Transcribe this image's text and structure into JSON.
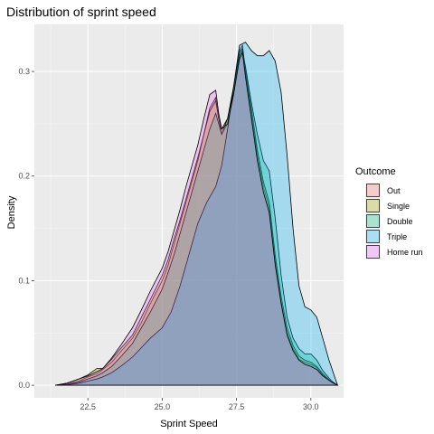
{
  "chart_data": {
    "type": "area",
    "title": "Distribution of sprint speed",
    "xlabel": "Sprint Speed",
    "ylabel": "Density",
    "xlim": [
      20.7,
      31.1
    ],
    "ylim": [
      -0.012,
      0.345
    ],
    "x_ticks": [
      22.5,
      25.0,
      27.5,
      30.0
    ],
    "x_tick_labels": [
      "22.5",
      "25.0",
      "27.5",
      "30.0"
    ],
    "y_ticks": [
      0.0,
      0.1,
      0.2,
      0.3
    ],
    "y_tick_labels": [
      "0.0",
      "0.1",
      "0.2",
      "0.3"
    ],
    "grid": true,
    "legend": {
      "title": "Outcome",
      "position": "right"
    },
    "series": [
      {
        "name": "Out",
        "color": "#F8766D",
        "x": [
          21.4,
          21.8,
          22.2,
          22.5,
          22.8,
          23.0,
          23.3,
          23.6,
          24.0,
          24.3,
          24.6,
          25.0,
          25.2,
          25.4,
          25.6,
          25.8,
          26.0,
          26.2,
          26.4,
          26.6,
          26.8,
          26.9,
          27.0,
          27.2,
          27.4,
          27.6,
          27.7,
          27.8,
          28.0,
          28.2,
          28.4,
          28.6,
          28.8,
          29.0,
          29.2,
          29.4,
          29.6,
          29.8,
          30.0,
          30.2,
          30.4,
          30.7,
          30.9
        ],
        "y": [
          0,
          0.001,
          0.004,
          0.008,
          0.011,
          0.015,
          0.022,
          0.032,
          0.045,
          0.06,
          0.078,
          0.1,
          0.115,
          0.135,
          0.155,
          0.175,
          0.195,
          0.215,
          0.24,
          0.265,
          0.275,
          0.255,
          0.24,
          0.25,
          0.28,
          0.32,
          0.325,
          0.3,
          0.26,
          0.22,
          0.19,
          0.17,
          0.12,
          0.08,
          0.05,
          0.035,
          0.025,
          0.022,
          0.02,
          0.017,
          0.01,
          0.003,
          0
        ]
      },
      {
        "name": "Single",
        "color": "#A3A500",
        "x": [
          21.4,
          21.8,
          22.2,
          22.5,
          22.8,
          23.0,
          23.3,
          23.6,
          24.0,
          24.3,
          24.6,
          25.0,
          25.2,
          25.4,
          25.6,
          25.8,
          26.0,
          26.2,
          26.4,
          26.6,
          26.8,
          26.9,
          27.0,
          27.2,
          27.4,
          27.6,
          27.7,
          27.8,
          28.0,
          28.2,
          28.4,
          28.6,
          28.8,
          29.0,
          29.2,
          29.4,
          29.6,
          29.8,
          30.0,
          30.2,
          30.4,
          30.7,
          30.9
        ],
        "y": [
          0,
          0.002,
          0.006,
          0.01,
          0.016,
          0.016,
          0.025,
          0.035,
          0.048,
          0.065,
          0.082,
          0.105,
          0.12,
          0.14,
          0.158,
          0.178,
          0.198,
          0.218,
          0.24,
          0.262,
          0.272,
          0.255,
          0.245,
          0.255,
          0.285,
          0.318,
          0.322,
          0.3,
          0.265,
          0.225,
          0.195,
          0.175,
          0.125,
          0.085,
          0.055,
          0.038,
          0.028,
          0.024,
          0.022,
          0.018,
          0.011,
          0.003,
          0
        ]
      },
      {
        "name": "Double",
        "color": "#00BF7D",
        "x": [
          21.4,
          21.8,
          22.2,
          22.5,
          22.8,
          23.0,
          23.3,
          23.6,
          24.0,
          24.3,
          24.6,
          25.0,
          25.2,
          25.4,
          25.6,
          25.8,
          26.0,
          26.2,
          26.4,
          26.6,
          26.8,
          26.9,
          27.0,
          27.2,
          27.4,
          27.6,
          27.7,
          27.8,
          28.0,
          28.2,
          28.4,
          28.6,
          28.8,
          29.0,
          29.2,
          29.4,
          29.6,
          29.8,
          30.0,
          30.2,
          30.4,
          30.7,
          30.9
        ],
        "y": [
          0,
          0.001,
          0.003,
          0.006,
          0.009,
          0.012,
          0.018,
          0.027,
          0.04,
          0.055,
          0.07,
          0.092,
          0.108,
          0.125,
          0.145,
          0.165,
          0.185,
          0.205,
          0.225,
          0.245,
          0.26,
          0.25,
          0.24,
          0.255,
          0.285,
          0.315,
          0.32,
          0.305,
          0.27,
          0.24,
          0.215,
          0.205,
          0.16,
          0.105,
          0.065,
          0.045,
          0.035,
          0.03,
          0.03,
          0.024,
          0.014,
          0.004,
          0
        ]
      },
      {
        "name": "Triple",
        "color": "#00B0F6",
        "x": [
          21.4,
          21.8,
          22.2,
          22.5,
          22.8,
          23.0,
          23.3,
          23.6,
          24.0,
          24.3,
          24.6,
          25.0,
          25.3,
          25.6,
          25.9,
          26.2,
          26.5,
          26.8,
          27.0,
          27.2,
          27.4,
          27.6,
          27.8,
          28.0,
          28.2,
          28.4,
          28.6,
          28.8,
          29.0,
          29.2,
          29.4,
          29.6,
          29.8,
          30.0,
          30.2,
          30.4,
          30.6,
          30.8,
          30.9
        ],
        "y": [
          0,
          0.0005,
          0.002,
          0.004,
          0.006,
          0.008,
          0.012,
          0.018,
          0.027,
          0.036,
          0.045,
          0.055,
          0.07,
          0.095,
          0.125,
          0.155,
          0.175,
          0.19,
          0.21,
          0.245,
          0.285,
          0.325,
          0.328,
          0.32,
          0.315,
          0.315,
          0.32,
          0.31,
          0.28,
          0.22,
          0.15,
          0.095,
          0.075,
          0.072,
          0.065,
          0.045,
          0.025,
          0.008,
          0
        ]
      },
      {
        "name": "Home run",
        "color": "#E76BF3",
        "x": [
          21.4,
          21.8,
          22.2,
          22.5,
          22.8,
          23.0,
          23.3,
          23.6,
          24.0,
          24.3,
          24.6,
          25.0,
          25.2,
          25.4,
          25.6,
          25.8,
          26.0,
          26.2,
          26.4,
          26.6,
          26.8,
          26.9,
          27.0,
          27.2,
          27.4,
          27.6,
          27.7,
          27.8,
          28.0,
          28.2,
          28.4,
          28.6,
          28.8,
          29.0,
          29.2,
          29.4,
          29.6,
          29.8,
          30.0,
          30.2,
          30.4,
          30.7,
          30.9
        ],
        "y": [
          0,
          0.002,
          0.006,
          0.009,
          0.013,
          0.016,
          0.026,
          0.038,
          0.055,
          0.072,
          0.09,
          0.112,
          0.128,
          0.148,
          0.168,
          0.19,
          0.21,
          0.23,
          0.255,
          0.278,
          0.282,
          0.26,
          0.245,
          0.25,
          0.278,
          0.312,
          0.318,
          0.295,
          0.255,
          0.215,
          0.185,
          0.165,
          0.115,
          0.078,
          0.048,
          0.033,
          0.024,
          0.02,
          0.018,
          0.015,
          0.009,
          0.003,
          0
        ]
      }
    ]
  }
}
